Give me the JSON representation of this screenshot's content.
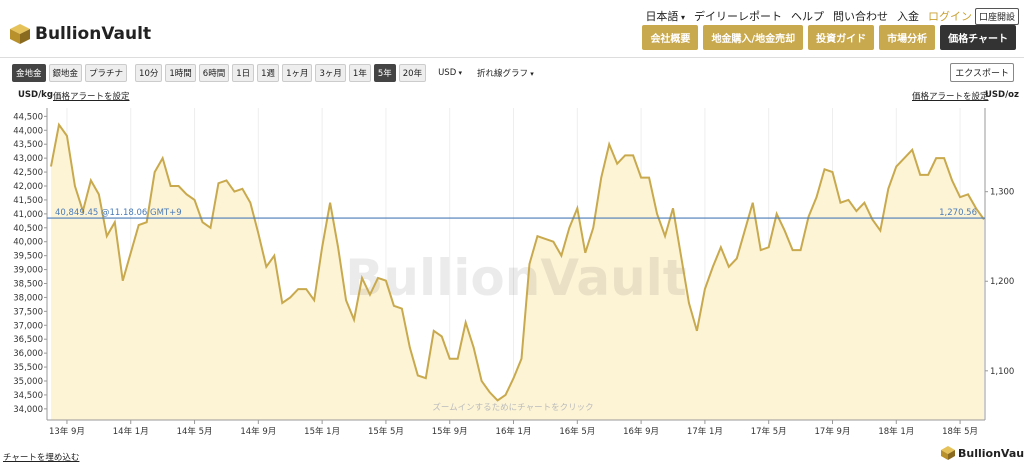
{
  "header": {
    "logo": "BullionVault",
    "links": [
      "日本語",
      "デイリーレポート",
      "ヘルプ",
      "問い合わせ",
      "入金",
      "ログイン"
    ],
    "open_account": "口座開設",
    "nav": [
      "会社概要",
      "地金購入/地金売却",
      "投資ガイド",
      "市場分析",
      "価格チャート"
    ]
  },
  "toolbar": {
    "metals": [
      "金地金",
      "銀地金",
      "プラチナ"
    ],
    "ranges": [
      "10分",
      "1時間",
      "6時間",
      "1日",
      "1週",
      "1ヶ月",
      "3ヶ月",
      "1年",
      "5年",
      "20年"
    ],
    "currency": "USD",
    "chart_type": "折れ線グラフ",
    "export": "エクスポート"
  },
  "chart_data": {
    "type": "line",
    "y_label": "USD/kg",
    "y2_label": "USD/oz",
    "alert_left": "価格アラートを設定",
    "alert_right": "価格アラートを設定",
    "watermark": "BullionVault",
    "hint": "ズームインするためにチャートをクリック",
    "categories": [
      null,
      null,
      "13年 9月",
      null,
      null,
      null,
      null,
      null,
      null,
      null,
      "14年 1月",
      null,
      null,
      null,
      null,
      null,
      null,
      null,
      "14年 5月",
      null,
      null,
      null,
      null,
      null,
      null,
      null,
      "14年 9月",
      null,
      null,
      null,
      null,
      null,
      null,
      null,
      "15年 1月",
      null,
      null,
      null,
      null,
      null,
      null,
      null,
      "15年 5月",
      null,
      null,
      null,
      null,
      null,
      null,
      null,
      "15年 9月",
      null,
      null,
      null,
      null,
      null,
      null,
      null,
      "16年 1月",
      null,
      null,
      null,
      null,
      null,
      null,
      null,
      "16年 5月",
      null,
      null,
      null,
      null,
      null,
      null,
      null,
      "16年 9月",
      null,
      null,
      null,
      null,
      null,
      null,
      null,
      "17年 1月",
      null,
      null,
      null,
      null,
      null,
      null,
      null,
      "17年 5月",
      null,
      null,
      null,
      null,
      null,
      null,
      null,
      "17年 9月",
      null,
      null,
      null,
      null,
      null,
      null,
      null,
      "18年 1月",
      null,
      null,
      null,
      null,
      null,
      null,
      null,
      "18年 5月",
      null,
      null,
      null
    ],
    "series": [
      {
        "color": "#c9a94d",
        "fill": "#fdf4d6",
        "values": [
          42700,
          44200,
          43800,
          42000,
          41100,
          42200,
          41700,
          40200,
          40700,
          38600,
          39600,
          40600,
          40700,
          42500,
          43000,
          42000,
          42000,
          41700,
          41500,
          40700,
          40500,
          42100,
          42200,
          41800,
          41900,
          41400,
          40300,
          39100,
          39500,
          37800,
          38000,
          38300,
          38300,
          37900,
          39800,
          41400,
          39800,
          37900,
          37200,
          38700,
          38100,
          38700,
          38600,
          37700,
          37600,
          36200,
          35200,
          35100,
          36800,
          36600,
          35800,
          35800,
          37100,
          36200,
          35000,
          34600,
          34300,
          34500,
          35100,
          35800,
          39200,
          40200,
          40100,
          40000,
          39500,
          40500,
          41200,
          39600,
          40500,
          42300,
          43500,
          42800,
          43100,
          43100,
          42300,
          42300,
          41000,
          40200,
          41200,
          39500,
          37800,
          36800,
          38300,
          39100,
          39800,
          39100,
          39400,
          40400,
          41400,
          39700,
          39800,
          41000,
          40400,
          39700,
          39700,
          40900,
          41600,
          42600,
          42500,
          41400,
          41500,
          41100,
          41400,
          40800,
          40400,
          41900,
          42700,
          43000,
          43300,
          42400,
          42400,
          43000,
          43000,
          42200,
          41600,
          41700,
          41200,
          40800
        ]
      }
    ],
    "ylim": [
      33600,
      44800
    ],
    "yticks": [
      {
        "value": 34000,
        "label": "34,000"
      },
      {
        "value": 34500,
        "label": "34,500"
      },
      {
        "value": 35000,
        "label": "35,000"
      },
      {
        "value": 35500,
        "label": "35,500"
      },
      {
        "value": 36000,
        "label": "36,000"
      },
      {
        "value": 36500,
        "label": "36,500"
      },
      {
        "value": 37000,
        "label": "37,000"
      },
      {
        "value": 37500,
        "label": "37,500"
      },
      {
        "value": 38000,
        "label": "38,000"
      },
      {
        "value": 38500,
        "label": "38,500"
      },
      {
        "value": 39000,
        "label": "39,000"
      },
      {
        "value": 39500,
        "label": "39,500"
      },
      {
        "value": 40000,
        "label": "40,000"
      },
      {
        "value": 40500,
        "label": "40,500"
      },
      {
        "value": 41000,
        "label": "41,000"
      },
      {
        "value": 41500,
        "label": "41,500"
      },
      {
        "value": 42000,
        "label": "42,000"
      },
      {
        "value": 42500,
        "label": "42,500"
      },
      {
        "value": 43000,
        "label": "43,000"
      },
      {
        "value": 43500,
        "label": "43,500"
      },
      {
        "value": 44000,
        "label": "44,000"
      },
      {
        "value": 44500,
        "label": "44,500"
      }
    ],
    "y2lim": [
      1045.08,
      1393.44
    ],
    "y2ticks": [
      {
        "value": 1100,
        "label": "1,100"
      },
      {
        "value": 1200,
        "label": "1,200"
      },
      {
        "value": 1300,
        "label": "1,300"
      }
    ],
    "hline": {
      "value": 40849.45,
      "label": "40,849.45 @11.18.06 GMT+9",
      "color": "#4a7bb7"
    },
    "hline_y2": {
      "value": 1270.56,
      "label": "1,270.56"
    }
  },
  "footer": {
    "embed": "チャートを埋め込む",
    "logo": "BullionVault"
  }
}
